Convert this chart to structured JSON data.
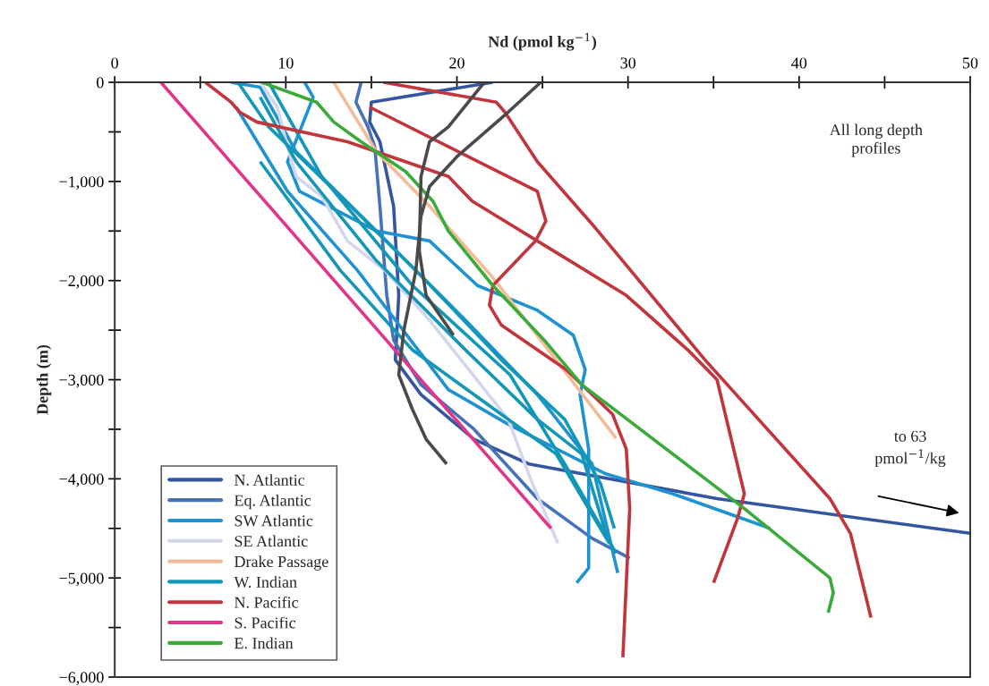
{
  "chart_data": {
    "type": "line",
    "xlabel": "Nd (pmol kg$^{−1}$)",
    "ylabel": "Depth (m)",
    "xlim": [
      0,
      50
    ],
    "ylim": [
      -6000,
      0
    ],
    "xticks": [
      0,
      {
        "value": 5,
        "label": null
      },
      10,
      {
        "value": 15,
        "label": null
      },
      20,
      {
        "value": 25,
        "label": null
      },
      30,
      {
        "value": 35,
        "label": null
      },
      40,
      {
        "value": 45,
        "label": null
      },
      50
    ],
    "yticks": [
      {
        "value": -6000,
        "label": "−6,000"
      },
      {
        "value": -5500,
        "label": null
      },
      {
        "value": -5000,
        "label": "−5,000"
      },
      {
        "value": -4500,
        "label": null
      },
      {
        "value": -4000,
        "label": "−4,000"
      },
      {
        "value": -3500,
        "label": null
      },
      {
        "value": -3000,
        "label": "−3,000"
      },
      {
        "value": -2500,
        "label": null
      },
      {
        "value": -2000,
        "label": "−2,000"
      },
      {
        "value": -1500,
        "label": null
      },
      {
        "value": -1000,
        "label": "−1,000"
      },
      {
        "value": -500,
        "label": null
      },
      0
    ],
    "grid": false,
    "legend": "bottom left",
    "annotations": [
      "All long depth\nprofiles",
      "to 63\npmol$^{−1}$/kg"
    ],
    "series": [
      {
        "name": "N. Atlantic",
        "color": "#34559f",
        "x": [
          22.1,
          15.0,
          14.9,
          15.5,
          16.3,
          16.6,
          16.4,
          17.9,
          21.0,
          24.2,
          35.2,
          50.0
        ],
        "values": [
          0,
          -200,
          -400,
          -600,
          -1250,
          -2150,
          -2800,
          -3150,
          -3600,
          -3850,
          -4200,
          -4550
        ]
      },
      {
        "name": "Eq. Atlantic",
        "color": "#4672b8",
        "x": [
          14.4,
          14.1,
          14.8,
          15.2,
          15.5,
          15.9,
          16.3,
          17.9,
          21.0,
          24.7,
          27.9,
          30.1
        ],
        "values": [
          0,
          -200,
          -450,
          -650,
          -1250,
          -2150,
          -2600,
          -3050,
          -3500,
          -4200,
          -4600,
          -4800
        ]
      },
      {
        "name": "SW Atlantic",
        "color": "#1f93d2",
        "x": [
          11.1,
          11.6,
          10.8,
          10.1,
          10.8,
          15.3,
          18.4,
          21.2,
          24.7,
          26.8,
          27.5,
          27.2,
          27.7,
          27.7,
          27.0
        ],
        "values": [
          0,
          -150,
          -500,
          -800,
          -1100,
          -1500,
          -1600,
          -2050,
          -2300,
          -2550,
          -2900,
          -3150,
          -3700,
          -4900,
          -5050
        ]
      },
      {
        "color": "#1f93d2",
        "x": [
          7.1,
          10.1,
          14.2,
          19.5,
          23.0,
          28.7,
          32.6,
          38.3
        ],
        "values": [
          -250,
          -1100,
          -1900,
          -3100,
          -3450,
          -3950,
          -4150,
          -4500
        ]
      },
      {
        "color": "#1f93d2",
        "x": [
          6.8,
          8.5,
          10.6,
          15.3,
          20.5,
          24.7,
          27.9,
          29.4
        ],
        "values": [
          0,
          -50,
          -700,
          -1500,
          -2400,
          -3150,
          -3850,
          -4950
        ]
      },
      {
        "name": "SE Atlantic",
        "color": "#d3d6ec",
        "x": [
          8.5,
          9.5,
          10.1,
          10.6,
          12.1,
          13.6,
          15.8,
          18.4,
          23.0,
          24.3,
          25.9
        ],
        "values": [
          0,
          -250,
          -650,
          -950,
          -1150,
          -1600,
          -1900,
          -2400,
          -3400,
          -4000,
          -4650
        ]
      },
      {
        "name": "Drake Passage",
        "color": "#f5bb98",
        "x": [
          12.8,
          15.3,
          18.4,
          22.1,
          29.3
        ],
        "values": [
          0,
          -700,
          -1250,
          -1970,
          -3590
        ]
      },
      {
        "name": "W. Indian",
        "color": "#1497b7",
        "x": [
          7.2,
          9.0,
          13.2,
          17.9,
          22.6,
          26.3,
          28.4,
          29.2
        ],
        "values": [
          0,
          -450,
          -1150,
          -1950,
          -2800,
          -3400,
          -4050,
          -4500
        ]
      },
      {
        "color": "#1497b7",
        "x": [
          8.5,
          10.6,
          15.3,
          20.5,
          24.7,
          27.3,
          28.8
        ],
        "values": [
          -150,
          -800,
          -1800,
          -2700,
          -3400,
          -3750,
          -4600
        ]
      },
      {
        "color": "#1497b7",
        "x": [
          9.0,
          12.1,
          17.4,
          23.1,
          26.3,
          29.3
        ],
        "values": [
          0,
          -950,
          -2050,
          -2950,
          -3850,
          -4750
        ]
      },
      {
        "color": "#1497b7",
        "x": [
          8.5,
          13.2,
          17.4,
          21.8,
          25.8,
          28.9
        ],
        "values": [
          -800,
          -1900,
          -2700,
          -3250,
          -3750,
          -4650
        ]
      },
      {
        "name": "N. Pacific",
        "color": "#c1353d",
        "x": [
          15.7,
          22.3,
          22.8,
          24.7,
          28.0,
          34.5,
          41.8,
          43.0,
          44.2
        ],
        "values": [
          0,
          -200,
          -300,
          -800,
          -1450,
          -2800,
          -4200,
          -4550,
          -5400
        ]
      },
      {
        "color": "#c1353d",
        "x": [
          14.9,
          24.7,
          25.2,
          24.6,
          22.1,
          21.9,
          22.6,
          26.4,
          29.1,
          29.9,
          30.1,
          29.7
        ],
        "values": [
          -250,
          -1100,
          -1400,
          -1600,
          -2050,
          -2250,
          -2450,
          -2900,
          -3350,
          -3700,
          -4300,
          -5800
        ]
      },
      {
        "color": "#c1353d",
        "x": [
          5.3,
          6.8,
          7.3,
          8.3,
          13.6,
          19.5,
          20.9,
          24.7,
          29.9,
          33.5,
          35.2,
          36.8,
          36.4,
          35.0
        ],
        "values": [
          0,
          -200,
          -300,
          -400,
          -600,
          -950,
          -1200,
          -1600,
          -2150,
          -2700,
          -3000,
          -4150,
          -4400,
          -5050
        ]
      },
      {
        "name": "S. Pacific",
        "color": "#e0368a",
        "x": [
          2.7,
          25.5
        ],
        "values": [
          0,
          -4500
        ]
      },
      {
        "name": "E. Indian",
        "color": "#3aab3a",
        "x": [
          8.6,
          11.8,
          12.8,
          14.4,
          17.0,
          18.6,
          19.5,
          22.1,
          25.1,
          27.3,
          36.8,
          41.8,
          42.0,
          41.7
        ],
        "values": [
          0,
          -200,
          -400,
          -600,
          -900,
          -1200,
          -1500,
          -2050,
          -2600,
          -3050,
          -4300,
          -5000,
          -5150,
          -5350
        ]
      },
      {
        "color": "#4a4a4a",
        "x": [
          24.9,
          23.0,
          20.0,
          18.4,
          17.9,
          17.6,
          16.9,
          16.6,
          17.4,
          18.2,
          19.4
        ],
        "values": [
          0,
          -300,
          -750,
          -1050,
          -1350,
          -1900,
          -2500,
          -2950,
          -3300,
          -3600,
          -3850
        ]
      },
      {
        "color": "#4a4a4a",
        "x": [
          21.6,
          19.5,
          18.4,
          17.9,
          17.8,
          18.2,
          19.0,
          19.8
        ],
        "values": [
          0,
          -450,
          -600,
          -950,
          -1700,
          -2150,
          -2350,
          -2550
        ]
      }
    ]
  }
}
